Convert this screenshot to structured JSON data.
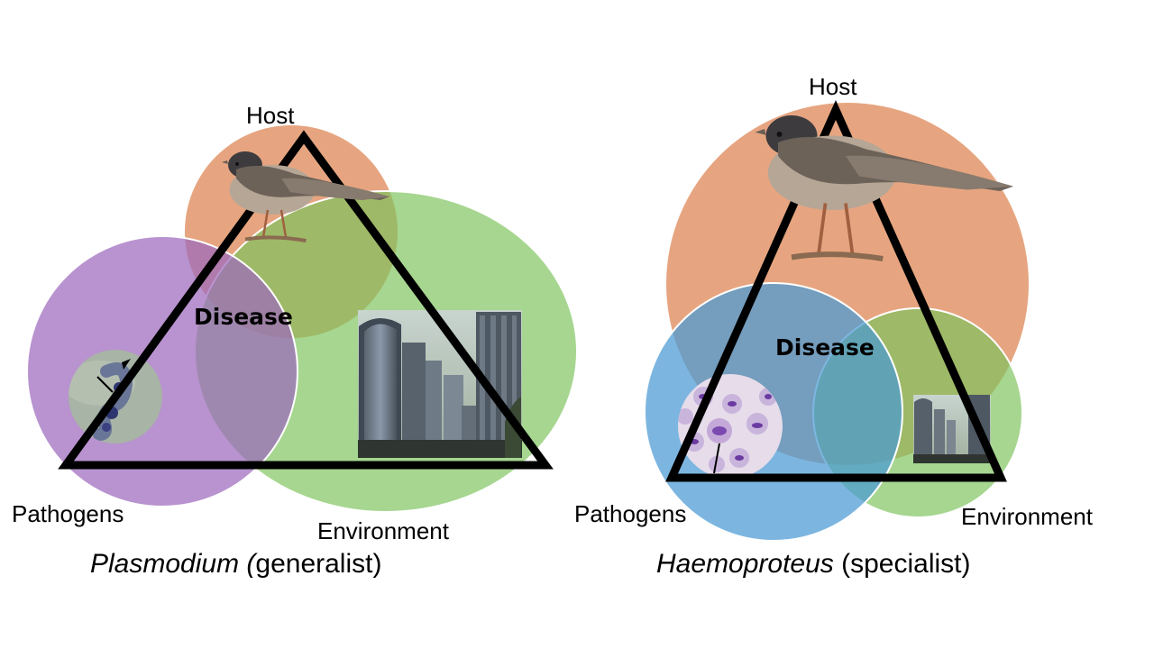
{
  "left_panel": {
    "host_label": "Host",
    "pathogens_label": "Pathogens",
    "environment_label": "Environment",
    "disease_label": "Disease",
    "caption_italic": "Plasmodium (",
    "caption_rest": "generalist)"
  },
  "right_panel": {
    "host_label": "Host",
    "pathogens_label": "Pathogens",
    "environment_label": "Environment",
    "disease_label": "Disease",
    "caption_italic": "Haemoproteus",
    "caption_rest": " (specialist)"
  },
  "colors": {
    "host": "#df8c5c",
    "environment": "#7cc35c",
    "pathogens_left": "#9c6abc",
    "pathogens_right": "#4a9ad4"
  },
  "icons": [
    "bird-icon",
    "parasite-micrograph-icon",
    "city-skyline-icon",
    "blood-cells-micrograph-icon"
  ]
}
